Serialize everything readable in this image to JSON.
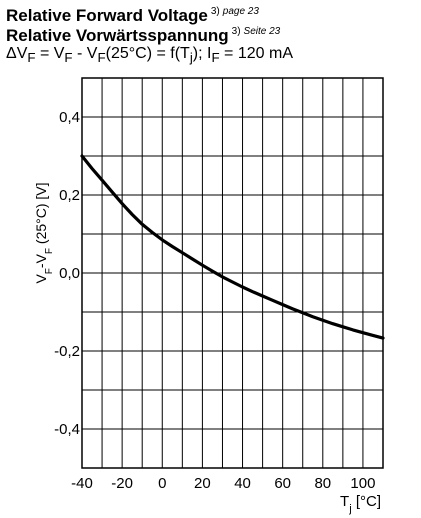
{
  "header": {
    "title_en": "Relative Forward Voltage",
    "title_en_ref": "3)",
    "title_en_page": "page  23",
    "title_de": "Relative Vorwärtsspannung",
    "title_de_ref": "3)",
    "title_de_page": "Seite  23",
    "formula": "ΔV<sub>F</sub> = V<sub>F</sub> - V<sub>F</sub>(25°C) = f(T<sub>j</sub>); I<sub>F</sub> = 120 mA"
  },
  "chart_data": {
    "type": "line",
    "xlabel": "T_j [°C]",
    "ylabel": "V_F-V_F (25°C) [V]",
    "xlim": [
      -40,
      110
    ],
    "ylim": [
      -0.5,
      0.5
    ],
    "x_ticks": [
      -40,
      -20,
      0,
      20,
      40,
      60,
      80,
      100
    ],
    "x_tick_labels": [
      "-40",
      "-20",
      "0",
      "20",
      "40",
      "60",
      "80",
      "100"
    ],
    "y_ticks": [
      0.4,
      0.2,
      0.0,
      -0.2,
      -0.4
    ],
    "y_tick_labels": [
      "0,4",
      "0,2",
      "0,0",
      "-0,2",
      "-0,4"
    ],
    "x_minor_step": 10,
    "y_minor_step": 0.1,
    "grid": true,
    "series": [
      {
        "color": "#000000",
        "x": [
          -40,
          -35,
          -30,
          -25,
          -20,
          -15,
          -10,
          -5,
          0,
          5,
          10,
          15,
          20,
          25,
          30,
          35,
          40,
          45,
          50,
          55,
          60,
          65,
          70,
          75,
          80,
          85,
          90,
          95,
          100,
          105,
          110
        ],
        "y": [
          0.3,
          0.268,
          0.238,
          0.208,
          0.178,
          0.15,
          0.125,
          0.104,
          0.085,
          0.068,
          0.052,
          0.036,
          0.02,
          0.005,
          -0.01,
          -0.023,
          -0.036,
          -0.048,
          -0.059,
          -0.07,
          -0.081,
          -0.092,
          -0.102,
          -0.112,
          -0.121,
          -0.13,
          -0.138,
          -0.146,
          -0.153,
          -0.16,
          -0.167
        ]
      }
    ]
  }
}
